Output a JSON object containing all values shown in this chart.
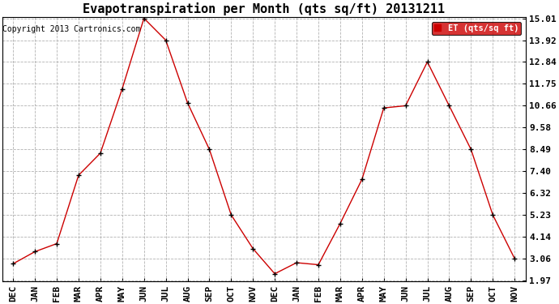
{
  "title": "Evapotranspiration per Month (qts sq/ft) 20131211",
  "copyright": "Copyright 2013 Cartronics.com",
  "legend_label": "ET (qts/sq ft)",
  "x_labels": [
    "DEC",
    "JAN",
    "FEB",
    "MAR",
    "APR",
    "MAY",
    "JUN",
    "JUL",
    "AUG",
    "SEP",
    "OCT",
    "NOV",
    "DEC",
    "JAN",
    "FEB",
    "MAR",
    "APR",
    "MAY",
    "JUN",
    "JUL",
    "AUG",
    "SEP",
    "OCT",
    "NOV"
  ],
  "y_values": [
    2.8,
    3.4,
    3.8,
    7.2,
    8.3,
    11.5,
    15.01,
    13.92,
    10.8,
    8.49,
    5.23,
    3.55,
    2.3,
    2.85,
    2.75,
    4.8,
    7.0,
    10.55,
    10.66,
    12.84,
    10.66,
    8.49,
    5.23,
    3.06
  ],
  "y_ticks": [
    1.97,
    3.06,
    4.14,
    5.23,
    6.32,
    7.4,
    8.49,
    9.58,
    10.66,
    11.75,
    12.84,
    13.92,
    15.01
  ],
  "y_tick_labels": [
    "1.97",
    "3.06",
    "4.14",
    "5.23",
    "6.32",
    "7.40",
    "8.49",
    "9.58",
    "10.66",
    "11.75",
    "12.84",
    "13.92",
    "15.01"
  ],
  "ylim": [
    1.97,
    15.01
  ],
  "line_color": "#cc0000",
  "marker_color": "#000000",
  "bg_color": "#ffffff",
  "grid_color": "#aaaaaa",
  "title_fontsize": 11,
  "copyright_fontsize": 7,
  "tick_fontsize": 8,
  "legend_bg": "#cc0000",
  "legend_text_color": "#ffffff"
}
